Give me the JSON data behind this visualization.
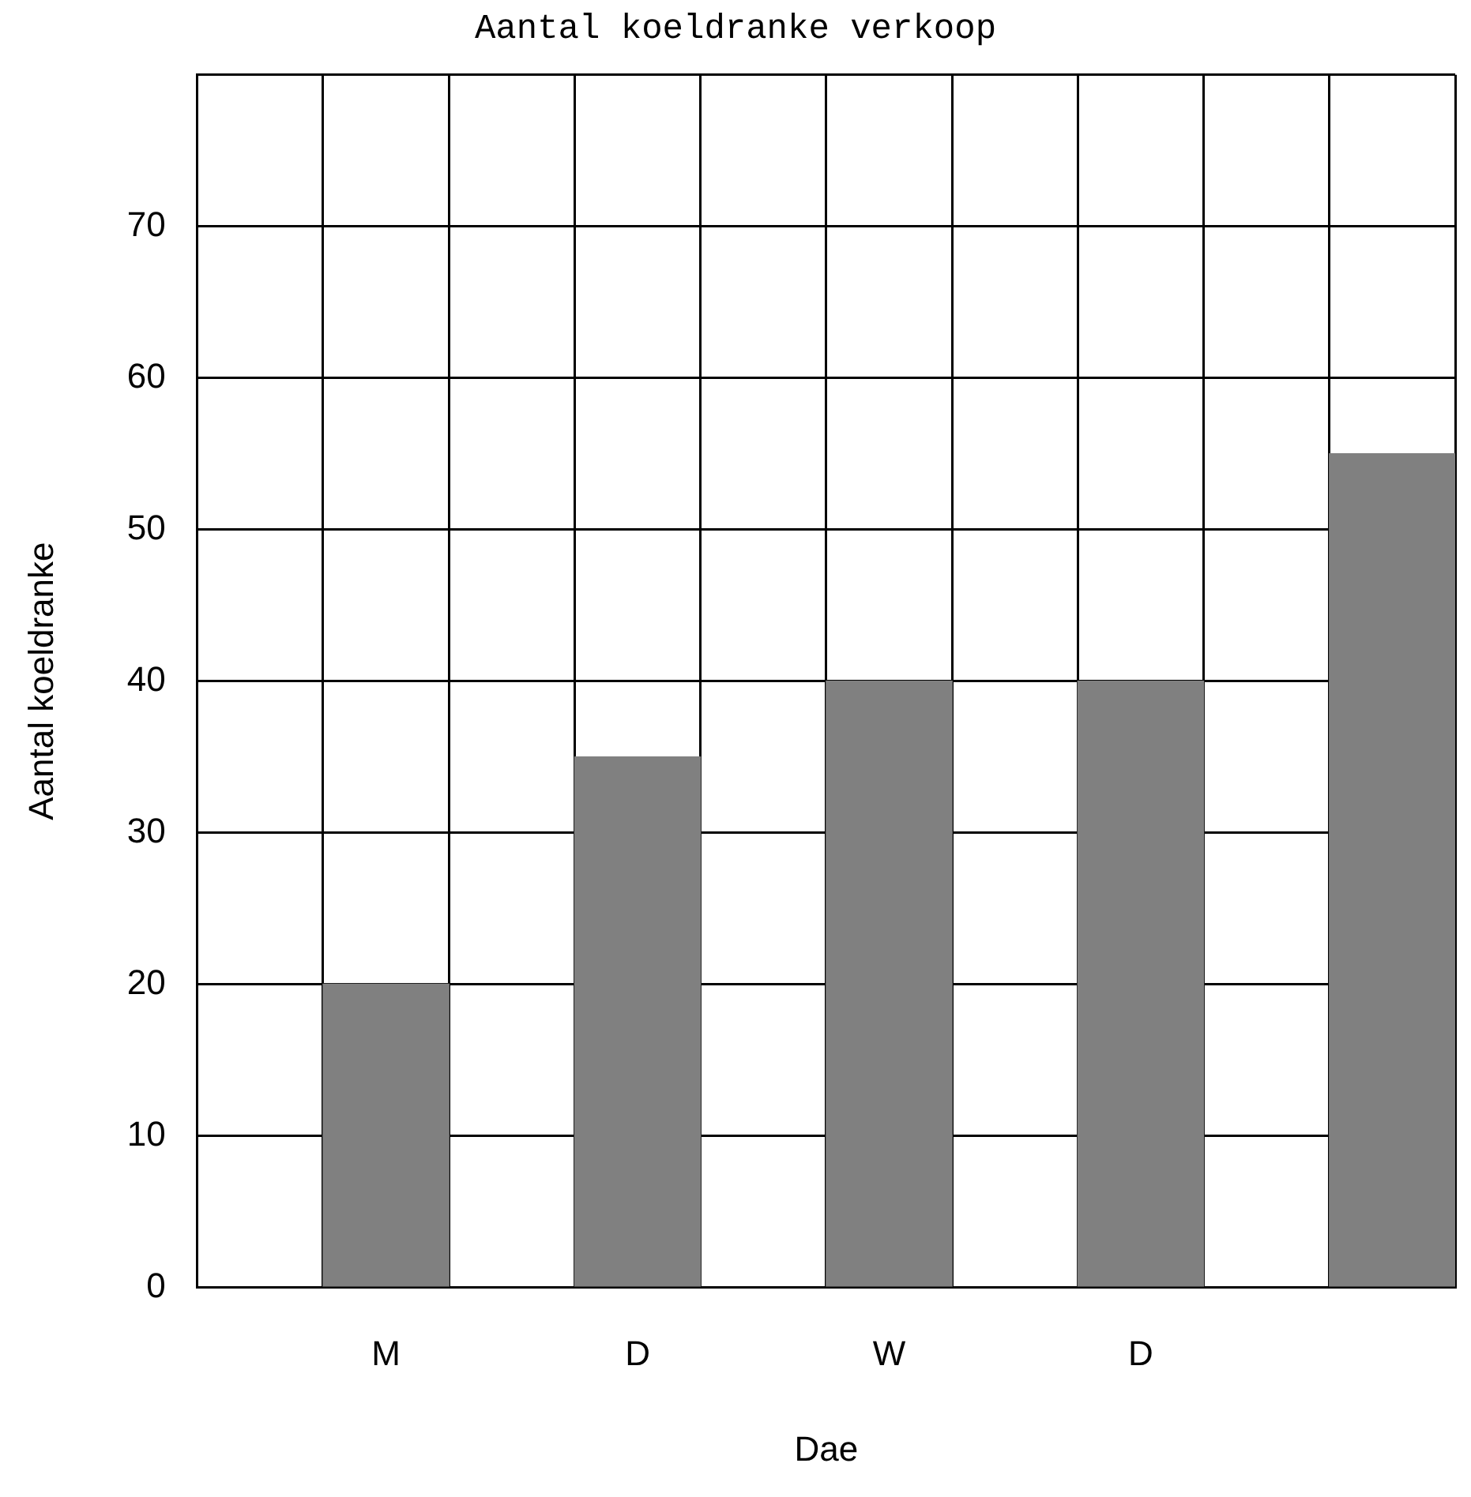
{
  "chart_data": {
    "type": "bar",
    "title": "Aantal koeldranke verkoop",
    "xlabel": "Dae",
    "ylabel": "Aantal koeldranke",
    "categories": [
      null,
      "M",
      null,
      "D",
      null,
      "W",
      null,
      "D",
      null,
      null
    ],
    "values": [
      null,
      20,
      null,
      35,
      null,
      40,
      null,
      40,
      null,
      55
    ],
    "color": "#808080",
    "ylim": [
      0,
      80
    ],
    "yticks": [
      0,
      10,
      20,
      30,
      40,
      50,
      60,
      70,
      {
        "value": 80,
        "label": null
      }
    ],
    "grid": true
  }
}
